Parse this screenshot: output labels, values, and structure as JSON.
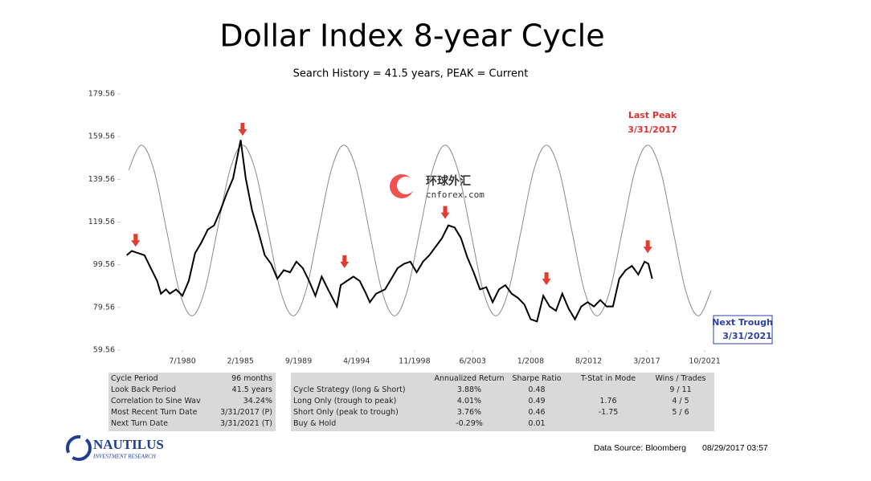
{
  "chart_data": {
    "type": "line",
    "title": "Dollar Index 8-year Cycle",
    "subtitle": "Search History = 41.5 years, PEAK = Current",
    "xlim": [
      1975.61,
      2022.57
    ],
    "xticks": [
      {
        "value": 1980.5,
        "label": "7/1980"
      },
      {
        "value": 1985.08,
        "label": "2/1985"
      },
      {
        "value": 1989.67,
        "label": "9/1989"
      },
      {
        "value": 1994.25,
        "label": "4/1994"
      },
      {
        "value": 1998.83,
        "label": "11/1998"
      },
      {
        "value": 2003.42,
        "label": "6/2003"
      },
      {
        "value": 2008.0,
        "label": "1/2008"
      },
      {
        "value": 2012.58,
        "label": "8/2012"
      },
      {
        "value": 2017.17,
        "label": "3/2017"
      },
      {
        "value": 2021.75,
        "label": "10/2021"
      }
    ],
    "ylim": [
      59.56,
      179.56
    ],
    "yticks": [
      59.56,
      79.56,
      99.56,
      119.56,
      139.56,
      159.56,
      179.56
    ],
    "series": [
      {
        "color": "#000000",
        "smooth": false,
        "x": [
          1976.1,
          1976.5,
          1977.0,
          1977.5,
          1978.0,
          1978.5,
          1978.8,
          1979.2,
          1979.5,
          1980.0,
          1980.5,
          1981.0,
          1981.5,
          1982.0,
          1982.5,
          1983.0,
          1983.5,
          1984.0,
          1984.5,
          1985.1,
          1985.5,
          1986.0,
          1986.5,
          1987.0,
          1987.5,
          1988.0,
          1988.5,
          1989.0,
          1989.5,
          1990.0,
          1990.5,
          1991.0,
          1991.5,
          1992.0,
          1992.7,
          1993.0,
          1993.5,
          1994.0,
          1994.5,
          1995.0,
          1995.3,
          1995.8,
          1996.5,
          1997.0,
          1997.5,
          1998.0,
          1998.5,
          1999.0,
          1999.5,
          2000.0,
          2000.5,
          2001.0,
          2001.5,
          2002.0,
          2002.5,
          2003.0,
          2003.5,
          2004.0,
          2004.5,
          2005.0,
          2005.5,
          2006.0,
          2006.5,
          2007.0,
          2007.5,
          2008.0,
          2008.5,
          2009.0,
          2009.5,
          2010.0,
          2010.5,
          2011.0,
          2011.5,
          2012.0,
          2012.5,
          2013.0,
          2013.5,
          2014.0,
          2014.5,
          2015.0,
          2015.5,
          2016.0,
          2016.5,
          2017.0,
          2017.3,
          2017.6
        ],
        "values": [
          104,
          106,
          105,
          104,
          98,
          92,
          86,
          88,
          86,
          88,
          85,
          92,
          105,
          110,
          116,
          118,
          125,
          133,
          140,
          158,
          140,
          125,
          115,
          104,
          100,
          93,
          97,
          96,
          101,
          98,
          92,
          85,
          94,
          88,
          80,
          90,
          92,
          94,
          92,
          86,
          82,
          86,
          88,
          93,
          98,
          100,
          101,
          96,
          101,
          104,
          108,
          112,
          118,
          117,
          112,
          103,
          96,
          88,
          89,
          82,
          88,
          90,
          86,
          84,
          81,
          74,
          73,
          85,
          80,
          78,
          86,
          79,
          74,
          80,
          82,
          80,
          83,
          80,
          80,
          93,
          97,
          99,
          95,
          101,
          100,
          93
        ]
      },
      {
        "color": "#8c8c8c",
        "smooth": true,
        "x": [
          1976.25,
          1977.25,
          1978.25,
          1979.25,
          1980.25,
          1981.25,
          1982.25,
          1983.25,
          1984.25,
          1985.25,
          1986.25,
          1987.25,
          1988.25,
          1989.25,
          1990.25,
          1991.25,
          1992.25,
          1993.25,
          1994.25,
          1995.25,
          1996.25,
          1997.25,
          1998.25,
          1999.25,
          2000.25,
          2001.25,
          2002.25,
          2003.25,
          2004.25,
          2005.25,
          2006.25,
          2007.25,
          2008.25,
          2009.25,
          2010.25,
          2011.25,
          2012.25,
          2013.25,
          2014.25,
          2015.25,
          2016.25,
          2017.25,
          2018.25,
          2019.25,
          2020.25,
          2021.25,
          2022.25
        ],
        "values": [
          143.9,
          155.6,
          143.9,
          115.6,
          87.3,
          75.6,
          87.3,
          115.6,
          143.9,
          155.6,
          143.9,
          115.6,
          87.3,
          75.6,
          87.3,
          115.6,
          143.9,
          155.6,
          143.9,
          115.6,
          87.3,
          75.6,
          87.3,
          115.6,
          143.9,
          155.6,
          143.9,
          115.6,
          87.3,
          75.6,
          87.3,
          115.6,
          143.9,
          155.6,
          143.9,
          115.6,
          87.3,
          75.6,
          87.3,
          115.6,
          143.9,
          155.6,
          143.9,
          115.6,
          87.3,
          75.6,
          87.3
        ]
      }
    ],
    "turn_markers": {
      "color": "#e03c31",
      "x": [
        1976.8,
        1985.25,
        1993.3,
        2001.25,
        2009.25,
        2017.25
      ],
      "values": [
        108,
        160,
        98,
        121,
        90,
        105
      ]
    },
    "annotations": {
      "last_peak": [
        "Last Peak",
        "3/31/2017"
      ],
      "next_trough": [
        "Next Trough",
        "3/31/2021"
      ]
    },
    "watermark": [
      "环球外汇",
      "cnforex.com"
    ]
  },
  "tables": {
    "left": [
      [
        "Cycle Period",
        "96 months"
      ],
      [
        "Look Back Period",
        "41.5 years"
      ],
      [
        "Correlation to Sine Wav",
        "34.24%"
      ],
      [
        "Most Recent Turn Date",
        "3/31/2017 (P)"
      ],
      [
        "Next Turn Date",
        "3/31/2021 (T)"
      ]
    ],
    "right_header": [
      "Annualized Return",
      "Sharpe Ratio",
      "T-Stat in Mode",
      "Wins / Trades"
    ],
    "right_rows": [
      [
        "Cycle Strategy (long & Short)",
        "3.88%",
        "0.48",
        "",
        "9 / 11"
      ],
      [
        "Long Only (trough to peak)",
        "4.01%",
        "0.49",
        "1.76",
        "4 / 5"
      ],
      [
        "Short Only (peak to trough)",
        "3.76%",
        "0.46",
        "-1.75",
        "5 / 6"
      ],
      [
        "Buy & Hold",
        "-0.29%",
        "0.01",
        "",
        ""
      ]
    ]
  },
  "footer": {
    "logo": "NAUTILUS",
    "logo_sub": "INVESTMENT RESEARCH",
    "source": "Data Source: Bloomberg",
    "timestamp": "08/29/2017 03:57"
  }
}
